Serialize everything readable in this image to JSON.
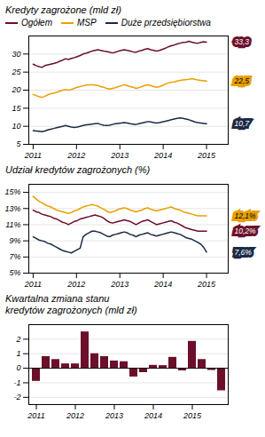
{
  "chart_data": [
    {
      "type": "line",
      "title": "Kredyty zagrożone (mld zł)",
      "x": [
        2011,
        2011.0678,
        2011.1356,
        2011.2034,
        2011.2712,
        2011.339,
        2011.4068,
        2011.4746,
        2011.5424,
        2011.6102,
        2011.678,
        2011.7458,
        2011.8136,
        2011.8814,
        2011.9492,
        2012.0169,
        2012.0847,
        2012.1525,
        2012.2203,
        2012.2881,
        2012.3559,
        2012.4237,
        2012.4915,
        2012.5593,
        2012.6271,
        2012.6949,
        2012.7627,
        2012.8305,
        2012.8983,
        2012.9661,
        2013.0339,
        2013.1017,
        2013.1695,
        2013.2373,
        2013.3051,
        2013.3729,
        2013.4407,
        2013.5085,
        2013.5763,
        2013.6441,
        2013.7119,
        2013.7797,
        2013.8475,
        2013.9153,
        2013.9831,
        2014.0508,
        2014.1186,
        2014.1864,
        2014.2542,
        2014.322,
        2014.3898,
        2014.4576,
        2014.5254,
        2014.5932,
        2014.661,
        2014.7288,
        2014.7966,
        2014.8644,
        2014.9322,
        2015
      ],
      "series": [
        {
          "name": "Ogółem",
          "color": "#6B0F2B",
          "values": [
            27.2,
            26.8,
            26.5,
            26.3,
            26.8,
            27.0,
            27.2,
            27.4,
            27.6,
            28.0,
            28.3,
            28.7,
            28.5,
            28.8,
            29.0,
            29.3,
            29.6,
            30.0,
            30.2,
            30.5,
            30.8,
            31.0,
            31.2,
            31.0,
            30.8,
            30.7,
            30.5,
            30.3,
            30.5,
            30.8,
            31.0,
            31.2,
            31.0,
            30.8,
            30.6,
            30.5,
            30.8,
            31.0,
            31.3,
            31.5,
            31.2,
            31.0,
            30.8,
            31.0,
            31.3,
            31.6,
            32.0,
            32.3,
            32.5,
            32.8,
            33.0,
            33.2,
            33.3,
            33.5,
            33.3,
            33.1,
            33.0,
            33.2,
            33.4,
            33.3
          ]
        },
        {
          "name": "MSP",
          "color": "#E8A000",
          "values": [
            18.8,
            18.5,
            18.2,
            18.0,
            18.3,
            18.7,
            19.0,
            19.2,
            19.4,
            19.7,
            20.0,
            20.2,
            20.0,
            20.2,
            20.5,
            20.8,
            21.0,
            21.2,
            21.4,
            21.5,
            21.5,
            21.4,
            21.3,
            21.0,
            20.8,
            20.5,
            20.3,
            20.5,
            20.7,
            21.0,
            21.2,
            21.5,
            21.3,
            21.0,
            20.8,
            20.5,
            20.7,
            21.0,
            21.3,
            21.5,
            21.3,
            21.0,
            20.8,
            21.0,
            21.3,
            21.7,
            22.0,
            22.2,
            22.3,
            22.5,
            22.7,
            22.8,
            22.9,
            23.0,
            23.2,
            23.0,
            22.8,
            22.7,
            22.6,
            22.5
          ]
        },
        {
          "name": "Duże przedsiębiorstwa",
          "color": "#1B2A45",
          "values": [
            8.8,
            8.7,
            8.6,
            8.5,
            8.7,
            9.0,
            9.2,
            9.4,
            9.6,
            9.8,
            10.0,
            10.2,
            10.0,
            9.8,
            9.7,
            9.8,
            10.0,
            10.2,
            10.4,
            10.5,
            10.6,
            10.7,
            10.8,
            10.5,
            10.3,
            10.2,
            10.3,
            10.5,
            10.7,
            10.8,
            10.9,
            11.0,
            10.9,
            10.7,
            10.6,
            10.5,
            10.7,
            10.9,
            11.1,
            11.3,
            11.2,
            11.0,
            10.9,
            11.0,
            11.2,
            11.4,
            11.6,
            11.8,
            12.0,
            12.2,
            12.3,
            12.2,
            12.0,
            11.8,
            11.5,
            11.2,
            11.0,
            10.9,
            10.8,
            10.7
          ]
        }
      ],
      "xlim": [
        2010.9,
        2015.5
      ],
      "xticks": [
        2011,
        2012,
        2013,
        2014,
        2015
      ],
      "ylim": [
        5,
        35
      ],
      "yticks": [
        5,
        10,
        15,
        20,
        25,
        30
      ],
      "grid": true,
      "legend": "top",
      "annotations": [
        {
          "text": "33,3",
          "y": 33.3,
          "color": "#6B0F2B"
        },
        {
          "text": "22,5",
          "y": 22.5,
          "color": "#E8A000"
        },
        {
          "text": "10,7",
          "y": 10.7,
          "color": "#1B2A45"
        }
      ]
    },
    {
      "type": "line",
      "title": "Udział kredytów zagrożonych (%)",
      "x": [
        2011,
        2011.0678,
        2011.1356,
        2011.2034,
        2011.2712,
        2011.339,
        2011.4068,
        2011.4746,
        2011.5424,
        2011.6102,
        2011.678,
        2011.7458,
        2011.8136,
        2011.8814,
        2011.9492,
        2012.0169,
        2012.0847,
        2012.1525,
        2012.2203,
        2012.2881,
        2012.3559,
        2012.4237,
        2012.4915,
        2012.5593,
        2012.6271,
        2012.6949,
        2012.7627,
        2012.8305,
        2012.8983,
        2012.9661,
        2013.0339,
        2013.1017,
        2013.1695,
        2013.2373,
        2013.3051,
        2013.3729,
        2013.4407,
        2013.5085,
        2013.5763,
        2013.6441,
        2013.7119,
        2013.7797,
        2013.8475,
        2013.9153,
        2013.9831,
        2014.0508,
        2014.1186,
        2014.1864,
        2014.2542,
        2014.322,
        2014.3898,
        2014.4576,
        2014.5254,
        2014.5932,
        2014.661,
        2014.7288,
        2014.7966,
        2014.8644,
        2014.9322,
        2015
      ],
      "series": [
        {
          "name": "Ogółem",
          "color": "#6B0F2B",
          "values": [
            12.8,
            12.6,
            12.5,
            12.3,
            12.2,
            12.1,
            12.0,
            11.8,
            11.7,
            11.5,
            11.3,
            11.2,
            11.0,
            11.2,
            11.4,
            11.5,
            11.7,
            11.8,
            11.9,
            12.0,
            12.1,
            12.2,
            12.1,
            12.0,
            11.8,
            11.5,
            11.3,
            11.2,
            11.3,
            11.4,
            11.5,
            11.6,
            11.5,
            11.4,
            11.2,
            11.0,
            11.2,
            11.4,
            11.5,
            11.6,
            11.4,
            11.2,
            11.0,
            11.1,
            11.2,
            11.3,
            11.4,
            11.5,
            11.3,
            11.2,
            11.0,
            10.8,
            10.6,
            10.5,
            10.4,
            10.3,
            10.2,
            10.2,
            10.2,
            10.2
          ]
        },
        {
          "name": "MSP",
          "color": "#E8A000",
          "values": [
            14.5,
            14.2,
            13.9,
            13.7,
            13.5,
            13.3,
            13.2,
            13.0,
            12.8,
            12.7,
            12.6,
            12.5,
            12.4,
            12.5,
            12.7,
            12.8,
            13.0,
            13.2,
            13.3,
            13.4,
            13.5,
            13.4,
            13.3,
            13.1,
            12.9,
            12.7,
            12.5,
            12.6,
            12.7,
            12.9,
            13.0,
            13.1,
            13.0,
            12.8,
            12.7,
            12.6,
            12.7,
            12.8,
            13.0,
            13.1,
            12.9,
            12.8,
            12.7,
            12.8,
            12.9,
            13.0,
            13.1,
            13.2,
            13.0,
            12.9,
            12.8,
            12.6,
            12.5,
            12.4,
            12.3,
            12.2,
            12.1,
            12.1,
            12.1,
            12.1
          ]
        },
        {
          "name": "Duże przedsiębiorstwa",
          "color": "#1B2A45",
          "values": [
            9.5,
            9.3,
            9.1,
            9.0,
            8.9,
            8.7,
            8.6,
            8.4,
            8.2,
            8.0,
            7.8,
            7.7,
            7.6,
            7.5,
            7.7,
            7.9,
            8.1,
            9.5,
            9.8,
            10.0,
            10.2,
            10.2,
            10.1,
            10.0,
            9.8,
            9.6,
            9.5,
            9.7,
            9.8,
            9.9,
            10.0,
            10.1,
            10.0,
            9.8,
            9.7,
            9.5,
            9.7,
            9.8,
            9.9,
            10.0,
            9.8,
            9.7,
            9.6,
            9.7,
            9.8,
            9.9,
            10.0,
            10.1,
            10.0,
            9.9,
            9.8,
            9.6,
            9.4,
            9.3,
            9.2,
            9.0,
            8.8,
            8.6,
            8.2,
            7.6
          ]
        }
      ],
      "xlim": [
        2010.9,
        2015.5
      ],
      "xticks": [
        2011,
        2012,
        2013,
        2014,
        2015
      ],
      "ylim": [
        5,
        16
      ],
      "yticks": [
        {
          "value": 5,
          "label": "5%"
        },
        {
          "value": 7,
          "label": "7%"
        },
        {
          "value": 9,
          "label": "9%"
        },
        {
          "value": 11,
          "label": "11%"
        },
        {
          "value": 13,
          "label": "13%"
        },
        {
          "value": 15,
          "label": "15%"
        }
      ],
      "grid": true,
      "annotations": [
        {
          "text": "12,1%",
          "y": 12.1,
          "color": "#E8A000"
        },
        {
          "text": "10,2%",
          "y": 10.2,
          "color": "#6B0F2B"
        },
        {
          "text": "7,6%",
          "y": 7.6,
          "color": "#1B2A45"
        }
      ]
    },
    {
      "type": "bar",
      "title": "Kwartalna zmiana stanu\nkredytów zagrożonych (mld zł)",
      "categories": [
        "2011",
        null,
        null,
        null,
        "2012",
        null,
        null,
        null,
        "2013",
        null,
        null,
        null,
        "2014",
        null,
        null,
        null,
        "2015",
        null,
        null,
        null
      ],
      "values": [
        -0.9,
        0.8,
        0.6,
        0.3,
        0.3,
        2.5,
        1.0,
        0.8,
        0.5,
        0.45,
        -0.6,
        -0.3,
        0.2,
        0.18,
        0.75,
        -0.18,
        1.85,
        0.6,
        -0.15,
        -1.55
      ],
      "color": "#6B0F2B",
      "ylim": [
        -2.5,
        3.0
      ],
      "yticks": [
        -2,
        -1,
        0,
        1,
        2
      ],
      "grid": true
    }
  ]
}
